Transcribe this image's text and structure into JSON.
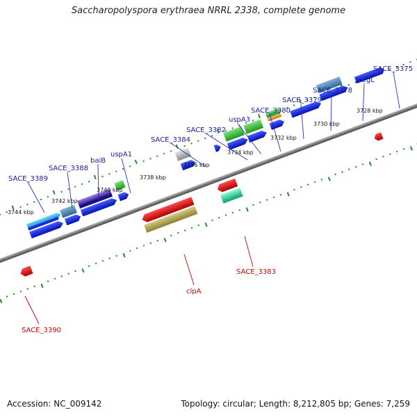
{
  "title": "Saccharopolyspora erythraea NRRL 2338, complete genome",
  "accession": "Accession: NC_009142",
  "summary": "Topology: circular; Length: 8,212,805 bp; Genes: 7,259",
  "kbp_labels": [
    {
      "text": "3744 kbp"
    },
    {
      "text": "3742 kbp"
    },
    {
      "text": "3740 kbp"
    },
    {
      "text": "3738 kbp"
    },
    {
      "text": "3736 kbp"
    },
    {
      "text": "3734 kbp"
    },
    {
      "text": "3732 kbp"
    },
    {
      "text": "3730 kbp"
    },
    {
      "text": "3728 kbp"
    }
  ],
  "gene_labels_top": [
    {
      "text": "SACE_3389"
    },
    {
      "text": "SACE_3388"
    },
    {
      "text": "baiB"
    },
    {
      "text": "uspA1"
    },
    {
      "text": "SACE_3384"
    },
    {
      "text": "SACE_3382"
    },
    {
      "text": "uspA3"
    },
    {
      "text": "SACE_3380"
    },
    {
      "text": "SACE_3379"
    },
    {
      "text": "SACE_3378"
    },
    {
      "text": "megL"
    },
    {
      "text": "SACE_3375"
    }
  ],
  "gene_labels_bottom": [
    {
      "text": "clpA"
    },
    {
      "text": "SACE_3383"
    },
    {
      "text": "SACE_3390"
    }
  ],
  "colors": {
    "backbone": "#8a8a8a",
    "tick": "#1f8a1f",
    "blue": "#0a1fd8",
    "red": "#e00000",
    "green": "#2fb52f",
    "cyan": "#27b6e6",
    "steel": "#4d86b8",
    "purple": "#6c4fc4",
    "gray": "#b7b7b7",
    "olive": "#b8ab5a",
    "teal": "#19d89a",
    "orange": "#f08a00"
  }
}
